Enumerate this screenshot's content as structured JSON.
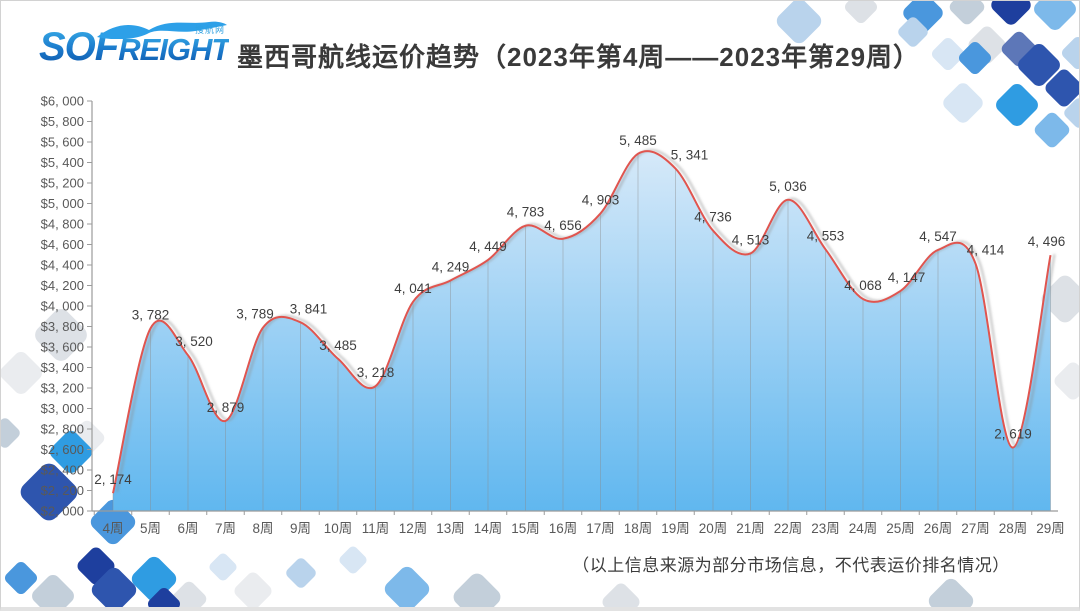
{
  "header": {
    "title": "墨西哥航线运价趋势（2023年第4周——2023年第29周）"
  },
  "logo": {
    "primary": "SOF",
    "secondary": "REIGHT",
    "tagline": "搜航网"
  },
  "footer": {
    "note": "（以上信息来源为部分市场信息，不代表运价排名情况）"
  },
  "colors": {
    "axis": "#9b9b9b",
    "tick_text": "#595959",
    "data_label": "#3f3f3f",
    "drop_line": "#8a8a8a",
    "title_text": "#3a3a3a",
    "logo_blue": "#1f7fd0"
  },
  "decor_palette": {
    "navy": "#1e3f9e",
    "royal": "#2e55ae",
    "slate": "#5d77b8",
    "bright": "#2f9ce2",
    "mid": "#4a97dd",
    "sky": "#7db9ea",
    "pale_blue": "#b9d3ec",
    "very_pale": "#d8e6f4",
    "gray_blue": "#c3cfda",
    "light_gray": "#dde1e6",
    "pale_gray": "#eaecef"
  },
  "chart_data": {
    "type": "area",
    "title": "墨西哥航线运价趋势（2023年第4周——2023年第29周）",
    "categories": [
      "4周",
      "5周",
      "6周",
      "7周",
      "8周",
      "9周",
      "10周",
      "11周",
      "12周",
      "13周",
      "14周",
      "15周",
      "16周",
      "17周",
      "18周",
      "19周",
      "20周",
      "21周",
      "22周",
      "23周",
      "24周",
      "25周",
      "26周",
      "27周",
      "28周",
      "29周"
    ],
    "values": [
      2174,
      3782,
      3520,
      2879,
      3789,
      3841,
      3485,
      3218,
      4041,
      4249,
      4449,
      4783,
      4656,
      4903,
      5485,
      5341,
      4736,
      4513,
      5036,
      4553,
      4068,
      4147,
      4547,
      4414,
      2619,
      4496
    ],
    "xlabel": "",
    "ylabel": "",
    "ylim": [
      2000,
      6000
    ],
    "ytick_step": 200,
    "y_prefix": "$",
    "grid": "vertical-drop-lines",
    "legend": "none",
    "line_color": "#e0544f",
    "area_top": "#d6e9f9",
    "area_bottom": "#60b7ef",
    "smooth": true,
    "data_labels": true
  }
}
